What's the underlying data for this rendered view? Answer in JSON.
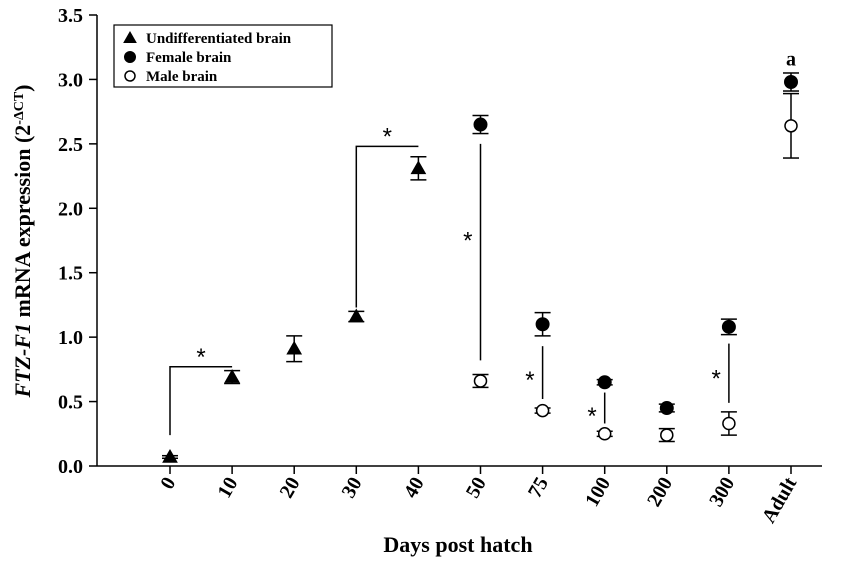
{
  "chart_data": {
    "type": "scatter",
    "categories": [
      "0",
      "10",
      "20",
      "30",
      "40",
      "50",
      "75",
      "100",
      "200",
      "300",
      "Adult"
    ],
    "xlabel": "Days post hatch",
    "ylabel_italic": "FTZ-F1",
    "ylabel_rest": " mRNA  expression (2",
    "ylabel_sup": "-ΔCT",
    "ylabel_close": ")",
    "ylim": [
      0,
      3.5
    ],
    "yticks": [
      "0.0",
      "0.5",
      "1.0",
      "1.5",
      "2.0",
      "2.5",
      "3.0",
      "3.5"
    ],
    "legend_position": "top-left",
    "series": [
      {
        "name": "Undifferentiated brain",
        "marker": "triangle",
        "color": "#000000",
        "points": [
          {
            "cat": "0",
            "y": 0.07,
            "err": 0.01
          },
          {
            "cat": "10",
            "y": 0.69,
            "err": 0.05
          },
          {
            "cat": "20",
            "y": 0.91,
            "err": 0.1
          },
          {
            "cat": "30",
            "y": 1.16,
            "err": 0.04
          },
          {
            "cat": "40",
            "y": 2.31,
            "err": 0.09
          }
        ]
      },
      {
        "name": "Female brain",
        "marker": "filled-circle",
        "color": "#000000",
        "points": [
          {
            "cat": "50",
            "y": 2.65,
            "err": 0.07
          },
          {
            "cat": "75",
            "y": 1.1,
            "err": 0.09
          },
          {
            "cat": "100",
            "y": 0.65,
            "err": 0.02
          },
          {
            "cat": "200",
            "y": 0.45,
            "err": 0.03
          },
          {
            "cat": "300",
            "y": 1.08,
            "err": 0.06
          },
          {
            "cat": "Adult",
            "y": 2.98,
            "err": 0.07
          }
        ]
      },
      {
        "name": "Male brain",
        "marker": "open-circle",
        "color": "#000000",
        "points": [
          {
            "cat": "50",
            "y": 0.66,
            "err": 0.05
          },
          {
            "cat": "75",
            "y": 0.43,
            "err": 0.02
          },
          {
            "cat": "100",
            "y": 0.25,
            "err": 0.02
          },
          {
            "cat": "200",
            "y": 0.24,
            "err": 0.05
          },
          {
            "cat": "300",
            "y": 0.33,
            "err": 0.09
          },
          {
            "cat": "Adult",
            "y": 2.64,
            "err": 0.25
          }
        ]
      }
    ],
    "brackets": [
      {
        "type": "elbow",
        "from": "0",
        "to": "10",
        "y_from": 0.24,
        "y_top": 0.77,
        "label": "*"
      },
      {
        "type": "elbow",
        "from": "30",
        "to": "40",
        "y_from": 1.23,
        "y_top": 2.48,
        "label": "*"
      }
    ],
    "vlines": [
      {
        "cat": "50",
        "y1": 0.82,
        "y2": 2.5,
        "label": "*",
        "label_y": 1.78
      },
      {
        "cat": "75",
        "y1": 0.52,
        "y2": 0.93,
        "label": "*",
        "label_y": 0.7
      },
      {
        "cat": "100",
        "y1": 0.33,
        "y2": 0.57,
        "label": "*",
        "label_y": 0.42
      },
      {
        "cat": "300",
        "y1": 0.49,
        "y2": 0.95,
        "label": "*",
        "label_y": 0.71
      }
    ],
    "annotations": [
      {
        "cat": "Adult",
        "y": 3.11,
        "label": "a"
      }
    ]
  }
}
